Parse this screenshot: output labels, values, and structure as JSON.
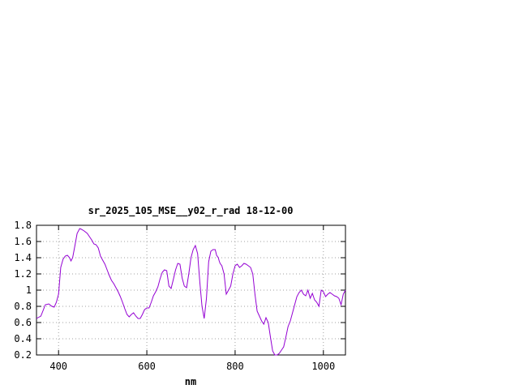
{
  "chart_data": {
    "type": "line",
    "title": "sr_2025_105_MSE__y02_r_rad 18-12-00",
    "xlabel": "nm",
    "ylabel": "",
    "xlim": [
      350,
      1050
    ],
    "ylim": [
      0.2,
      1.8
    ],
    "x_ticks": [
      400,
      600,
      800,
      1000
    ],
    "y_ticks": [
      0.2,
      0.4,
      0.6,
      0.8,
      1,
      1.2,
      1.4,
      1.6,
      1.8
    ],
    "x_tick_labels": [
      "400",
      "600",
      "800",
      "1000"
    ],
    "y_tick_labels": [
      "0.2",
      "0.4",
      "0.6",
      "0.8",
      "1",
      "1.2",
      "1.4",
      "1.6",
      "1.8"
    ],
    "grid": true,
    "legend": "none",
    "colors": {
      "series": "#9400d3"
    },
    "series": [
      {
        "x": [
          350,
          360,
          365,
          370,
          378,
          385,
          390,
          395,
          400,
          405,
          410,
          415,
          420,
          425,
          428,
          432,
          437,
          442,
          448,
          452,
          458,
          465,
          470,
          475,
          480,
          485,
          490,
          495,
          500,
          505,
          510,
          515,
          520,
          525,
          530,
          535,
          540,
          545,
          550,
          555,
          560,
          565,
          570,
          575,
          580,
          585,
          590,
          595,
          600,
          605,
          610,
          615,
          620,
          625,
          630,
          635,
          640,
          645,
          650,
          655,
          660,
          665,
          670,
          675,
          680,
          685,
          690,
          695,
          700,
          705,
          710,
          715,
          720,
          725,
          730,
          735,
          740,
          745,
          750,
          755,
          758,
          762,
          764,
          766,
          770,
          775,
          780,
          785,
          790,
          795,
          800,
          805,
          810,
          815,
          820,
          825,
          830,
          835,
          840,
          845,
          850,
          855,
          860,
          865,
          870,
          875,
          880,
          885,
          890,
          895,
          900,
          905,
          910,
          915,
          920,
          925,
          930,
          935,
          940,
          945,
          950,
          955,
          960,
          965,
          970,
          975,
          980,
          985,
          990,
          995,
          1000,
          1005,
          1010,
          1015,
          1020,
          1025,
          1030,
          1035,
          1040,
          1045,
          1050
        ],
        "y": [
          0.65,
          0.68,
          0.75,
          0.82,
          0.83,
          0.8,
          0.79,
          0.85,
          0.95,
          1.28,
          1.38,
          1.42,
          1.43,
          1.4,
          1.36,
          1.4,
          1.55,
          1.7,
          1.76,
          1.75,
          1.73,
          1.7,
          1.66,
          1.62,
          1.57,
          1.56,
          1.52,
          1.42,
          1.37,
          1.32,
          1.25,
          1.18,
          1.12,
          1.08,
          1.03,
          0.98,
          0.92,
          0.85,
          0.77,
          0.7,
          0.67,
          0.7,
          0.72,
          0.68,
          0.65,
          0.65,
          0.7,
          0.76,
          0.78,
          0.78,
          0.85,
          0.93,
          0.98,
          1.04,
          1.14,
          1.22,
          1.25,
          1.24,
          1.05,
          1.02,
          1.13,
          1.25,
          1.33,
          1.32,
          1.15,
          1.05,
          1.03,
          1.2,
          1.4,
          1.5,
          1.55,
          1.45,
          1.1,
          0.8,
          0.65,
          0.9,
          1.35,
          1.48,
          1.5,
          1.5,
          1.43,
          1.4,
          1.36,
          1.33,
          1.3,
          1.2,
          0.95,
          1.0,
          1.05,
          1.2,
          1.3,
          1.32,
          1.28,
          1.3,
          1.33,
          1.32,
          1.3,
          1.28,
          1.2,
          0.95,
          0.74,
          0.68,
          0.62,
          0.58,
          0.66,
          0.6,
          0.42,
          0.25,
          0.2,
          0.2,
          0.22,
          0.26,
          0.3,
          0.42,
          0.55,
          0.62,
          0.72,
          0.82,
          0.92,
          0.97,
          1.0,
          0.95,
          0.93,
          1.0,
          0.9,
          0.96,
          0.88,
          0.85,
          0.8,
          1.0,
          0.98,
          0.92,
          0.95,
          0.97,
          0.95,
          0.93,
          0.92,
          0.9,
          0.82,
          0.95,
          1.0
        ]
      }
    ]
  }
}
